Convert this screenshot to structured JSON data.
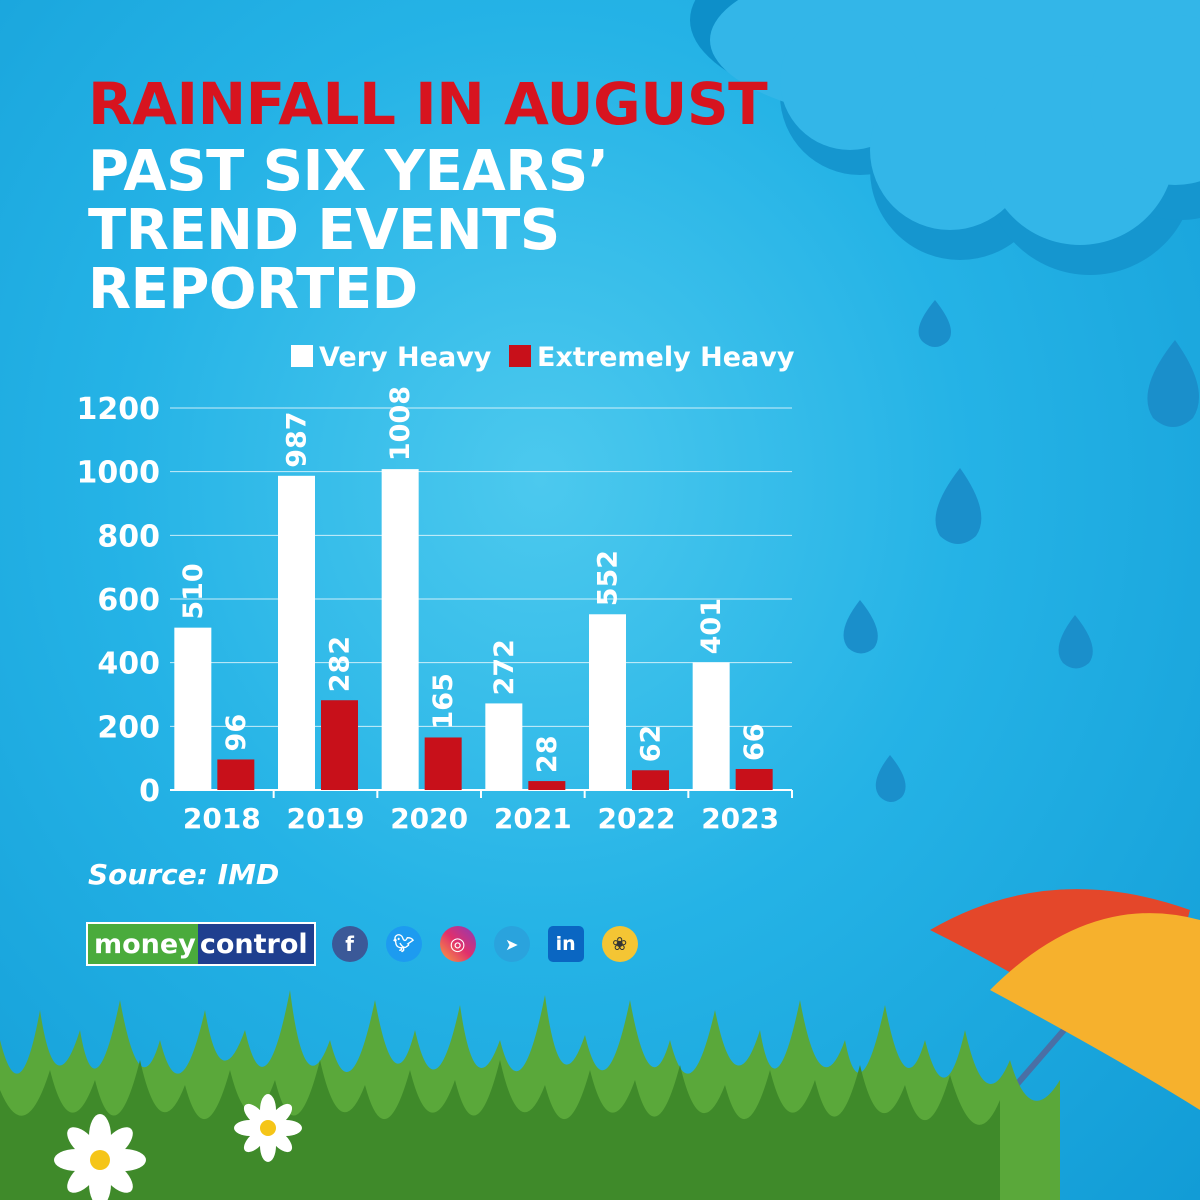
{
  "header": {
    "title_line1": "RAINFALL IN AUGUST",
    "title_line2": "PAST SIX YEARS’ TREND EVENTS REPORTED"
  },
  "source": "Source: IMD",
  "brand": {
    "logo_part1": "money",
    "logo_part2": "control",
    "social_icons": [
      "facebook-icon",
      "twitter-icon",
      "instagram-icon",
      "telegram-icon",
      "linkedin-icon",
      "koo-icon"
    ]
  },
  "colors": {
    "very_heavy": "#ffffff",
    "extremely_heavy": "#c8101a",
    "title_red": "#d7141f",
    "background": "#25b3e6"
  },
  "chart_data": {
    "type": "bar",
    "categories": [
      "2018",
      "2019",
      "2020",
      "2021",
      "2022",
      "2023"
    ],
    "series": [
      {
        "name": "Very Heavy",
        "values": [
          510,
          987,
          1008,
          272,
          552,
          401
        ]
      },
      {
        "name": "Extremely Heavy",
        "values": [
          96,
          282,
          165,
          28,
          62,
          66
        ]
      }
    ],
    "ylim": [
      0,
      1200
    ],
    "yticks": [
      0,
      200,
      400,
      600,
      800,
      1000,
      1200
    ],
    "grid": true,
    "legend": "top"
  }
}
